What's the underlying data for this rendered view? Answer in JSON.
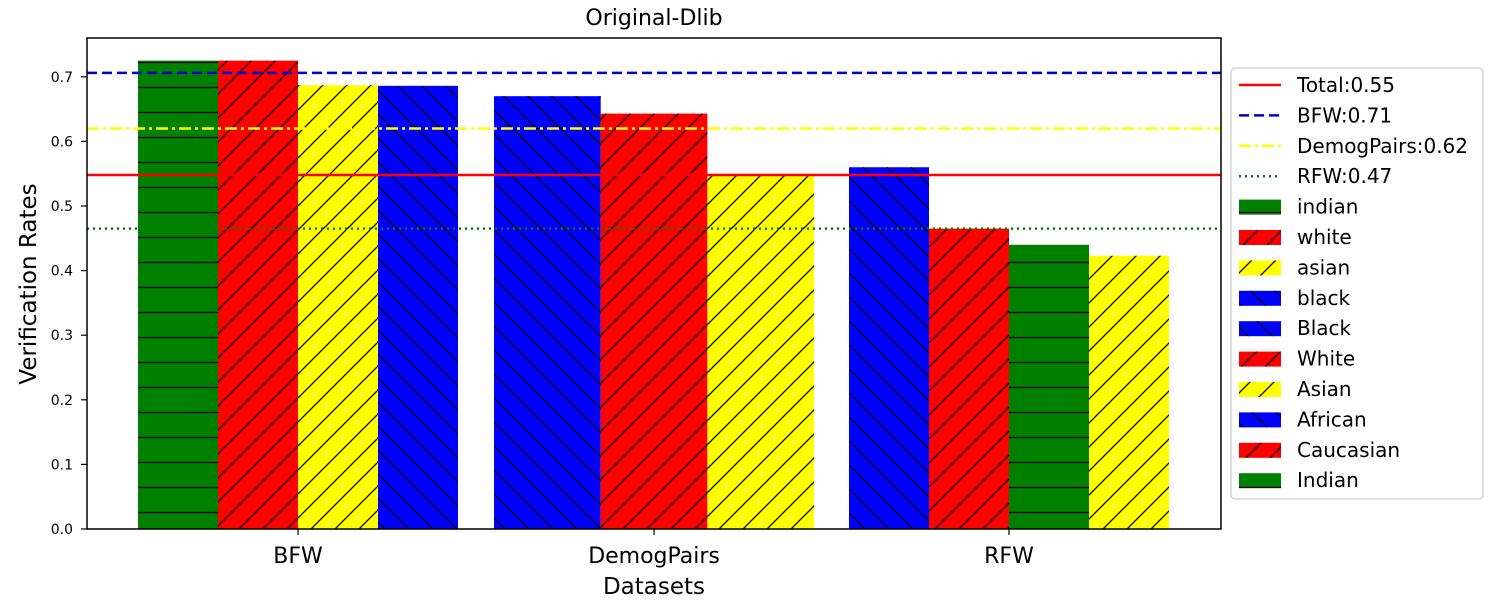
{
  "chart_data": {
    "type": "bar",
    "title": "Original-Dlib",
    "xlabel": "Datasets",
    "ylabel": "Verification Rates",
    "ylim": [
      0,
      0.75
    ],
    "yticks": [
      "0.0",
      "0.1",
      "0.2",
      "0.3",
      "0.4",
      "0.5",
      "0.6",
      "0.7"
    ],
    "grid": false,
    "legend_position": "right, outside plot",
    "groups": [
      {
        "label": "BFW",
        "bars": [
          {
            "label": "indian",
            "value": 0.725,
            "color": "#008000",
            "hatch": "horizontal"
          },
          {
            "label": "white",
            "value": 0.725,
            "color": "#ff0000",
            "hatch": "forward"
          },
          {
            "label": "asian",
            "value": 0.687,
            "color": "#ffff00",
            "hatch": "forward"
          },
          {
            "label": "black",
            "value": 0.686,
            "color": "#0000ff",
            "hatch": "back"
          }
        ]
      },
      {
        "label": "DemogPairs",
        "bars": [
          {
            "label": "Black",
            "value": 0.67,
            "color": "#0000ff",
            "hatch": "back"
          },
          {
            "label": "White",
            "value": 0.643,
            "color": "#ff0000",
            "hatch": "forward"
          },
          {
            "label": "Asian",
            "value": 0.549,
            "color": "#ffff00",
            "hatch": "forward"
          }
        ]
      },
      {
        "label": "RFW",
        "bars": [
          {
            "label": "African",
            "value": 0.56,
            "color": "#0000ff",
            "hatch": "back"
          },
          {
            "label": "Caucasian",
            "value": 0.465,
            "color": "#ff0000",
            "hatch": "forward"
          },
          {
            "label": "Indian",
            "value": 0.44,
            "color": "#008000",
            "hatch": "horizontal"
          },
          {
            "label": "Asian",
            "value": 0.423,
            "color": "#ffff00",
            "hatch": "forward"
          }
        ]
      }
    ],
    "reference_lines": [
      {
        "label": "Total:0.55",
        "value": 0.548,
        "color": "#ff0000",
        "style": "solid"
      },
      {
        "label": "BFW:0.71",
        "value": 0.706,
        "color": "#0000cc",
        "style": "dashed"
      },
      {
        "label": "DemogPairs:0.62",
        "value": 0.62,
        "color": "#ffff00",
        "style": "dashdot"
      },
      {
        "label": "RFW:0.47",
        "value": 0.465,
        "color": "#008000",
        "style": "dotted"
      }
    ],
    "legend_bars": [
      {
        "label": "indian",
        "color": "#008000",
        "hatch": "horizontal"
      },
      {
        "label": "white",
        "color": "#ff0000",
        "hatch": "forward"
      },
      {
        "label": "asian",
        "color": "#ffff00",
        "hatch": "forward"
      },
      {
        "label": "black",
        "color": "#0000ff",
        "hatch": "back"
      },
      {
        "label": "Black",
        "color": "#0000ff",
        "hatch": "back"
      },
      {
        "label": "White",
        "color": "#ff0000",
        "hatch": "forward"
      },
      {
        "label": "Asian",
        "color": "#ffff00",
        "hatch": "forward"
      },
      {
        "label": "African",
        "color": "#0000ff",
        "hatch": "back"
      },
      {
        "label": "Caucasian",
        "color": "#ff0000",
        "hatch": "forward"
      },
      {
        "label": "Indian",
        "color": "#008000",
        "hatch": "horizontal"
      }
    ]
  }
}
